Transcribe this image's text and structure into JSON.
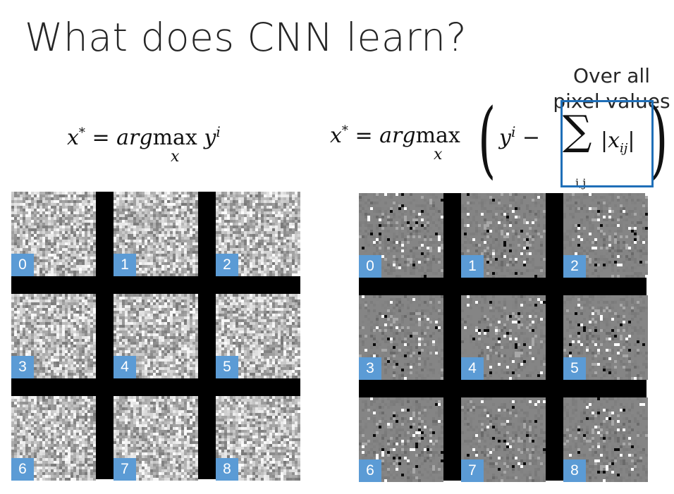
{
  "slide": {
    "title": "What does CNN learn?",
    "callout": [
      "Over all",
      "pixel values"
    ],
    "left_equation": {
      "lhs": "x*",
      "op": "=",
      "func": "argmax",
      "sub": "x",
      "rhs": "y",
      "sup": "i"
    },
    "right_equation": {
      "lhs": "x*",
      "op": "=",
      "func": "argmax",
      "sub": "x",
      "rhs": "y",
      "sup": "i",
      "minus": "−",
      "sum_sub": "i,j",
      "term": "x",
      "term_sub": "ij"
    }
  },
  "grids": {
    "left": {
      "kind": "noise",
      "labels": [
        "0",
        "1",
        "2",
        "3",
        "4",
        "5",
        "6",
        "7",
        "8"
      ]
    },
    "right": {
      "kind": "sparse",
      "labels": [
        "0",
        "1",
        "2",
        "3",
        "4",
        "5",
        "6",
        "7",
        "8"
      ]
    }
  },
  "colors": {
    "label_bg": "#5b9bd5",
    "box_border": "#1f6fb8"
  }
}
